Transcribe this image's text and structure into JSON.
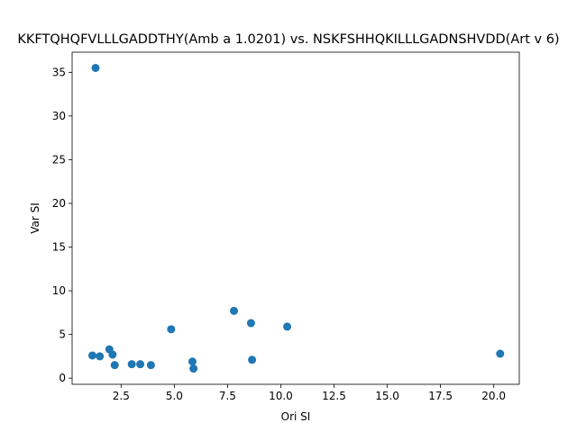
{
  "chart_data": {
    "type": "scatter",
    "title": "KKFTQHQFVLLLGADDTHY(Amb a 1.0201) vs. NSKFSHHQKILLLGADNSHVDD(Art v 6)",
    "xlabel": "Ori SI",
    "ylabel": "Var SI",
    "xlim": [
      0.2,
      21.2
    ],
    "ylim": [
      -0.7,
      37.3
    ],
    "xticks": [
      2.5,
      5.0,
      7.5,
      10.0,
      12.5,
      15.0,
      17.5,
      20.0
    ],
    "xtick_labels": [
      "2.5",
      "5.0",
      "7.5",
      "10.0",
      "12.5",
      "15.0",
      "17.5",
      "20.0"
    ],
    "yticks": [
      0,
      5,
      10,
      15,
      20,
      25,
      30,
      35
    ],
    "ytick_labels": [
      "0",
      "5",
      "10",
      "15",
      "20",
      "25",
      "30",
      "35"
    ],
    "marker_color": "#1f77b4",
    "grid": false,
    "series": [
      {
        "points": [
          {
            "x": 1.3,
            "y": 35.5
          },
          {
            "x": 1.15,
            "y": 2.6
          },
          {
            "x": 1.5,
            "y": 2.5
          },
          {
            "x": 1.95,
            "y": 3.3
          },
          {
            "x": 2.1,
            "y": 2.7
          },
          {
            "x": 2.2,
            "y": 1.5
          },
          {
            "x": 3.0,
            "y": 1.6
          },
          {
            "x": 3.4,
            "y": 1.6
          },
          {
            "x": 3.9,
            "y": 1.5
          },
          {
            "x": 4.85,
            "y": 5.6
          },
          {
            "x": 5.85,
            "y": 1.9
          },
          {
            "x": 5.9,
            "y": 1.1
          },
          {
            "x": 7.8,
            "y": 7.7
          },
          {
            "x": 8.6,
            "y": 6.3
          },
          {
            "x": 8.65,
            "y": 2.1
          },
          {
            "x": 10.3,
            "y": 5.9
          },
          {
            "x": 20.3,
            "y": 2.8
          }
        ]
      }
    ]
  }
}
